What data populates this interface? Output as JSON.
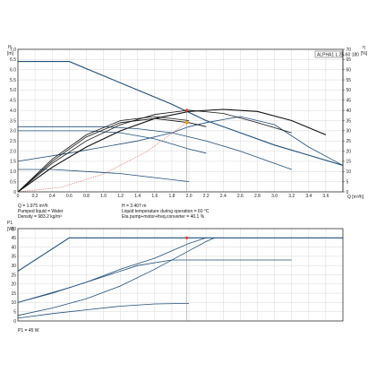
{
  "chart_data": [
    {
      "type": "line",
      "title": "ALPHA1 L 25-60  180",
      "x_unit": "Q [m³/h]",
      "y_left": {
        "label": "H",
        "unit": "[m]",
        "range": [
          0,
          7.0
        ]
      },
      "y_right": {
        "label": "η",
        "unit": "[%]",
        "range": [
          0,
          70
        ]
      },
      "xlim": [
        0,
        3.8
      ],
      "x_ticks": [
        "0",
        "0.2",
        "0.4",
        "0.6",
        "0.8",
        "1.0",
        "1.2",
        "1.4",
        "1.6",
        "1.8",
        "2.0",
        "2.2",
        "2.4",
        "2.6",
        "2.8",
        "3.0",
        "3.2",
        "3.4",
        "3.6"
      ],
      "y_left_ticks": [
        "0",
        "0.5",
        "1.0",
        "1.5",
        "2.0",
        "2.5",
        "3.0",
        "3.5",
        "4.0",
        "4.5",
        "5.0",
        "5.5",
        "6.0",
        "6.5",
        "7.0"
      ],
      "y_right_ticks": [
        "0",
        "5",
        "10",
        "15",
        "20",
        "25",
        "30",
        "35",
        "40",
        "45",
        "50",
        "55",
        "60",
        "65",
        "70"
      ],
      "grid": true,
      "series": [
        {
          "color": "#1f4e79",
          "x": [
            0,
            0.6,
            1.0,
            1.4,
            1.8,
            2.2,
            2.6,
            3.0,
            3.4,
            3.8
          ],
          "y": [
            6.4,
            6.4,
            5.7,
            5.0,
            4.3,
            3.5,
            2.9,
            2.3,
            1.8,
            1.3
          ]
        },
        {
          "color": "#1f4e79",
          "x": [
            0,
            0.6,
            1.0,
            1.4,
            1.8,
            2.2,
            2.6,
            3.0,
            3.2
          ],
          "y": [
            3.2,
            3.2,
            3.2,
            3.1,
            2.9,
            2.5,
            2.0,
            1.4,
            1.1
          ]
        },
        {
          "color": "#1f4e79",
          "x": [
            0,
            0.4,
            0.8,
            1.2,
            1.6,
            2.0,
            2.2
          ],
          "y": [
            3.0,
            3.0,
            3.0,
            2.9,
            2.6,
            2.1,
            1.9
          ]
        },
        {
          "color": "#1f4e79",
          "x": [
            0,
            0.6,
            1.0,
            1.4,
            1.8,
            2.0,
            2.2,
            2.6,
            3.0,
            3.4,
            3.8
          ],
          "y": [
            1.5,
            1.9,
            2.2,
            2.5,
            2.9,
            3.2,
            3.4,
            3.7,
            3.3,
            2.2,
            1.3
          ]
        },
        {
          "color": "#1f4e79",
          "x": [
            0,
            0.4,
            0.8,
            1.2,
            1.6,
            2.0
          ],
          "y": [
            1.1,
            1.1,
            1.0,
            0.9,
            0.7,
            0.5
          ]
        },
        {
          "color": "#111111",
          "x": [
            0,
            0.4,
            0.8,
            1.2,
            1.6,
            2.0,
            2.4,
            2.8,
            3.2,
            3.6
          ],
          "y": [
            0,
            12,
            22,
            30,
            36,
            39.5,
            40.5,
            39.5,
            35,
            28
          ]
        },
        {
          "color": "#111111",
          "x": [
            0,
            0.4,
            0.8,
            1.2,
            1.6,
            2.0,
            2.4,
            2.8,
            3.2
          ],
          "y": [
            0,
            14,
            25,
            33,
            38,
            40.1,
            38.5,
            34,
            29
          ]
        },
        {
          "color": "#111111",
          "x": [
            0,
            0.4,
            0.8,
            1.2,
            1.6,
            2.0,
            2.2
          ],
          "y": [
            0,
            15,
            27,
            34,
            36,
            34,
            32
          ]
        },
        {
          "color": "#111111",
          "x": [
            0,
            0.4,
            0.8,
            1.2,
            1.6,
            2.0
          ],
          "y": [
            0,
            16,
            28,
            35,
            37,
            35
          ]
        },
        {
          "color": "#d96a5a",
          "style": "dotted",
          "x": [
            0,
            0.5,
            1.0,
            1.5,
            1.975
          ],
          "y": [
            0,
            0.22,
            0.87,
            1.96,
            3.407
          ]
        }
      ],
      "duty_point": {
        "Q": 1.975,
        "H": 3.407,
        "eta": 40.1
      },
      "info_left": [
        "Q = 1.975 m³/h",
        "Pumped liquid = Water",
        "Density = 983.2 kg/m³"
      ],
      "info_right": [
        "H = 3.407 m",
        "Liquid temperature during operation = 60 °C",
        "Eta pump+motor+freq.converter = 40.1 %"
      ]
    },
    {
      "type": "line",
      "y_label": "P1",
      "y_unit": "[W]",
      "ylim": [
        0,
        50
      ],
      "xlim": [
        0,
        3.8
      ],
      "y_ticks": [
        "0",
        "5",
        "10",
        "15",
        "20",
        "25",
        "30",
        "35",
        "40",
        "45",
        "50"
      ],
      "grid": true,
      "series": [
        {
          "color": "#1f4e79",
          "x": [
            0,
            0.6,
            1.0,
            1.4,
            1.8,
            2.2,
            2.6,
            3.0,
            3.4,
            3.8
          ],
          "y": [
            27,
            45,
            45,
            45,
            45,
            45,
            45,
            45,
            45,
            45
          ]
        },
        {
          "color": "#1f4e79",
          "x": [
            0,
            0.6,
            1.0,
            1.4,
            1.8,
            2.2,
            2.6,
            3.0,
            3.2
          ],
          "y": [
            10,
            18,
            24,
            30,
            33,
            33,
            33,
            33,
            33
          ]
        },
        {
          "color": "#1f4e79",
          "x": [
            0,
            0.4,
            0.8,
            1.2,
            1.6,
            2.0,
            2.2
          ],
          "y": [
            10,
            15,
            21,
            28,
            34,
            42,
            45
          ]
        },
        {
          "color": "#1f4e79",
          "x": [
            0,
            0.4,
            0.8,
            1.2,
            1.6,
            2.0,
            2.2,
            2.3
          ],
          "y": [
            3,
            7,
            12,
            19,
            28,
            38,
            43,
            45
          ]
        },
        {
          "color": "#1f4e79",
          "x": [
            0,
            0.4,
            0.8,
            1.2,
            1.6,
            2.0
          ],
          "y": [
            1.5,
            4,
            6,
            8,
            9.2,
            9.5
          ]
        }
      ],
      "duty_point": {
        "Q": 1.975,
        "P1": 45
      },
      "info": "P1 = 45 W"
    }
  ]
}
